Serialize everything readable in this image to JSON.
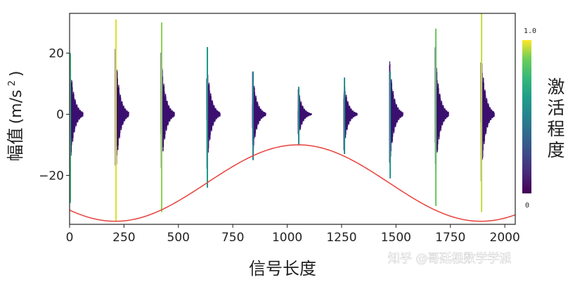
{
  "chart_data": {
    "type": "line",
    "xlabel": "信号长度",
    "ylabel_main": "幅值",
    "ylabel_unit": "(m/s",
    "ylabel_sup": "2",
    "ylabel_close": ")",
    "xlim": [
      0,
      2048
    ],
    "ylim": [
      -36,
      33
    ],
    "xticks": [
      0,
      250,
      500,
      750,
      1000,
      1250,
      1500,
      1750,
      2000
    ],
    "yticks": [
      -20,
      0,
      20
    ],
    "grid": false,
    "colorbar": {
      "label": "激活程度",
      "min_label": "0",
      "max_label": "1.0",
      "colormap": "viridis",
      "range": [
        0,
        1
      ]
    },
    "impulses": {
      "decay_length": 62,
      "positions": [
        0,
        210,
        420,
        630,
        840,
        1050,
        1260,
        1470,
        1680,
        1890
      ],
      "amplitudes": [
        20,
        23,
        21,
        19,
        15,
        9,
        12,
        19,
        22,
        23
      ],
      "spike_tops": [
        20,
        31,
        30,
        22,
        14,
        9,
        12,
        14,
        28,
        33
      ],
      "spike_bottoms": [
        -29,
        -35,
        -32,
        -24,
        -15,
        -10,
        -13,
        -21,
        -30,
        -32
      ],
      "activation": [
        0.75,
        0.97,
        0.9,
        0.6,
        0.5,
        0.55,
        0.55,
        0.6,
        0.85,
        0.95
      ],
      "oscillation_color": "#3b0f70"
    },
    "envelope_curve": {
      "color": "#e8413c",
      "form": "cosine",
      "period": 1680,
      "peak_at_x": 1050,
      "max": -10,
      "min": -35
    }
  },
  "watermark": "知乎 @哥廷根数学学派"
}
